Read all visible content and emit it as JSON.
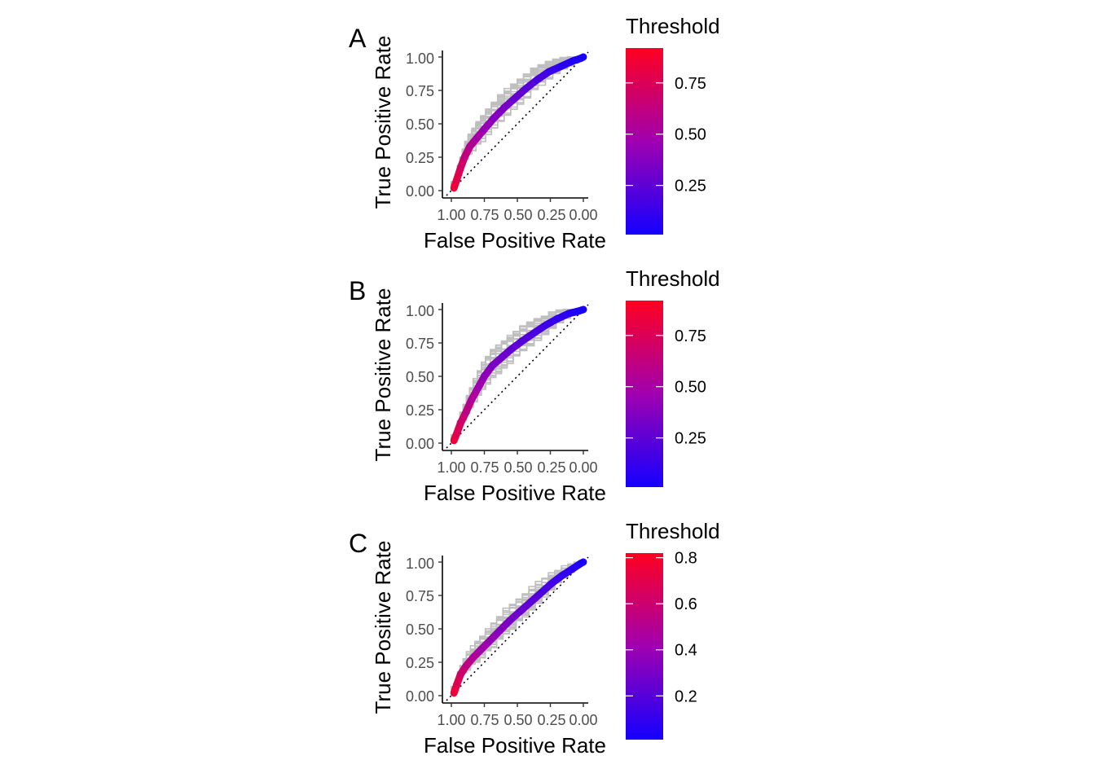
{
  "chart_data": [
    {
      "type": "line",
      "panel_label": "A",
      "xlabel": "False Positive Rate",
      "ylabel": "True Positive Rate",
      "x_reversed": true,
      "xlim": [
        1.0,
        0.0
      ],
      "ylim": [
        0.0,
        1.0
      ],
      "x_ticks": [
        "1.00",
        "0.75",
        "0.50",
        "0.25",
        "0.00"
      ],
      "y_ticks": [
        "0.00",
        "0.25",
        "0.50",
        "0.75",
        "1.00"
      ],
      "reference_line": {
        "from": [
          1.0,
          0.0
        ],
        "to": [
          0.0,
          1.0
        ],
        "style": "dotted"
      },
      "mean_curve": {
        "x": [
          0.98,
          0.96,
          0.93,
          0.9,
          0.86,
          0.81,
          0.75,
          0.68,
          0.6,
          0.52,
          0.44,
          0.35,
          0.26,
          0.17,
          0.08,
          0.02,
          0.0
        ],
        "y": [
          0.02,
          0.08,
          0.17,
          0.25,
          0.33,
          0.39,
          0.46,
          0.54,
          0.62,
          0.69,
          0.76,
          0.83,
          0.89,
          0.93,
          0.97,
          0.99,
          1.0
        ],
        "threshold": [
          0.9,
          0.82,
          0.74,
          0.66,
          0.58,
          0.52,
          0.46,
          0.4,
          0.35,
          0.3,
          0.25,
          0.2,
          0.15,
          0.1,
          0.06,
          0.03,
          0.01
        ]
      },
      "resample_band": {
        "upper_offset": 0.09,
        "lower_offset": 0.1
      },
      "legend": {
        "title": "Threshold",
        "ticks": [
          "0.75",
          "0.50",
          "0.25"
        ],
        "tick_values": [
          0.75,
          0.5,
          0.25
        ],
        "range": [
          0.01,
          0.92
        ],
        "low_color": "#1400ff",
        "mid_color": "#a000b0",
        "high_color": "#ff0020"
      }
    },
    {
      "type": "line",
      "panel_label": "B",
      "xlabel": "False Positive Rate",
      "ylabel": "True Positive Rate",
      "x_reversed": true,
      "xlim": [
        1.0,
        0.0
      ],
      "ylim": [
        0.0,
        1.0
      ],
      "x_ticks": [
        "1.00",
        "0.75",
        "0.50",
        "0.25",
        "0.00"
      ],
      "y_ticks": [
        "0.00",
        "0.25",
        "0.50",
        "0.75",
        "1.00"
      ],
      "reference_line": {
        "from": [
          1.0,
          0.0
        ],
        "to": [
          0.0,
          1.0
        ],
        "style": "dotted"
      },
      "mean_curve": {
        "x": [
          0.98,
          0.96,
          0.93,
          0.89,
          0.85,
          0.8,
          0.75,
          0.69,
          0.62,
          0.55,
          0.47,
          0.38,
          0.29,
          0.2,
          0.11,
          0.03,
          0.0
        ],
        "y": [
          0.02,
          0.07,
          0.15,
          0.23,
          0.32,
          0.41,
          0.5,
          0.58,
          0.64,
          0.7,
          0.76,
          0.82,
          0.88,
          0.93,
          0.97,
          0.99,
          1.0
        ],
        "threshold": [
          0.88,
          0.8,
          0.72,
          0.64,
          0.56,
          0.49,
          0.43,
          0.37,
          0.32,
          0.28,
          0.24,
          0.2,
          0.16,
          0.12,
          0.08,
          0.04,
          0.01
        ]
      },
      "resample_band": {
        "upper_offset": 0.1,
        "lower_offset": 0.11
      },
      "legend": {
        "title": "Threshold",
        "ticks": [
          "0.75",
          "0.50",
          "0.25"
        ],
        "tick_values": [
          0.75,
          0.5,
          0.25
        ],
        "range": [
          0.01,
          0.92
        ],
        "low_color": "#1400ff",
        "mid_color": "#a000b0",
        "high_color": "#ff0020"
      }
    },
    {
      "type": "line",
      "panel_label": "C",
      "xlabel": "False Positive Rate",
      "ylabel": "True Positive Rate",
      "x_reversed": true,
      "xlim": [
        1.0,
        0.0
      ],
      "ylim": [
        0.0,
        1.0
      ],
      "x_ticks": [
        "1.00",
        "0.75",
        "0.50",
        "0.25",
        "0.00"
      ],
      "y_ticks": [
        "0.00",
        "0.25",
        "0.50",
        "0.75",
        "1.00"
      ],
      "reference_line": {
        "from": [
          1.0,
          0.0
        ],
        "to": [
          0.0,
          1.0
        ],
        "style": "dotted"
      },
      "mean_curve": {
        "x": [
          0.98,
          0.96,
          0.93,
          0.89,
          0.84,
          0.78,
          0.71,
          0.64,
          0.56,
          0.48,
          0.4,
          0.32,
          0.24,
          0.16,
          0.08,
          0.02,
          0.0
        ],
        "y": [
          0.02,
          0.08,
          0.16,
          0.22,
          0.28,
          0.34,
          0.41,
          0.48,
          0.56,
          0.63,
          0.7,
          0.77,
          0.84,
          0.9,
          0.95,
          0.99,
          1.0
        ],
        "threshold": [
          0.8,
          0.72,
          0.64,
          0.57,
          0.51,
          0.45,
          0.4,
          0.35,
          0.31,
          0.27,
          0.23,
          0.19,
          0.15,
          0.11,
          0.07,
          0.04,
          0.01
        ]
      },
      "resample_band": {
        "upper_offset": 0.1,
        "lower_offset": 0.1
      },
      "legend": {
        "title": "Threshold",
        "ticks": [
          "0.8",
          "0.6",
          "0.4",
          "0.2"
        ],
        "tick_values": [
          0.8,
          0.6,
          0.4,
          0.2
        ],
        "range": [
          0.01,
          0.82
        ],
        "low_color": "#1400ff",
        "mid_color": "#a000b0",
        "high_color": "#ff0020"
      }
    }
  ]
}
